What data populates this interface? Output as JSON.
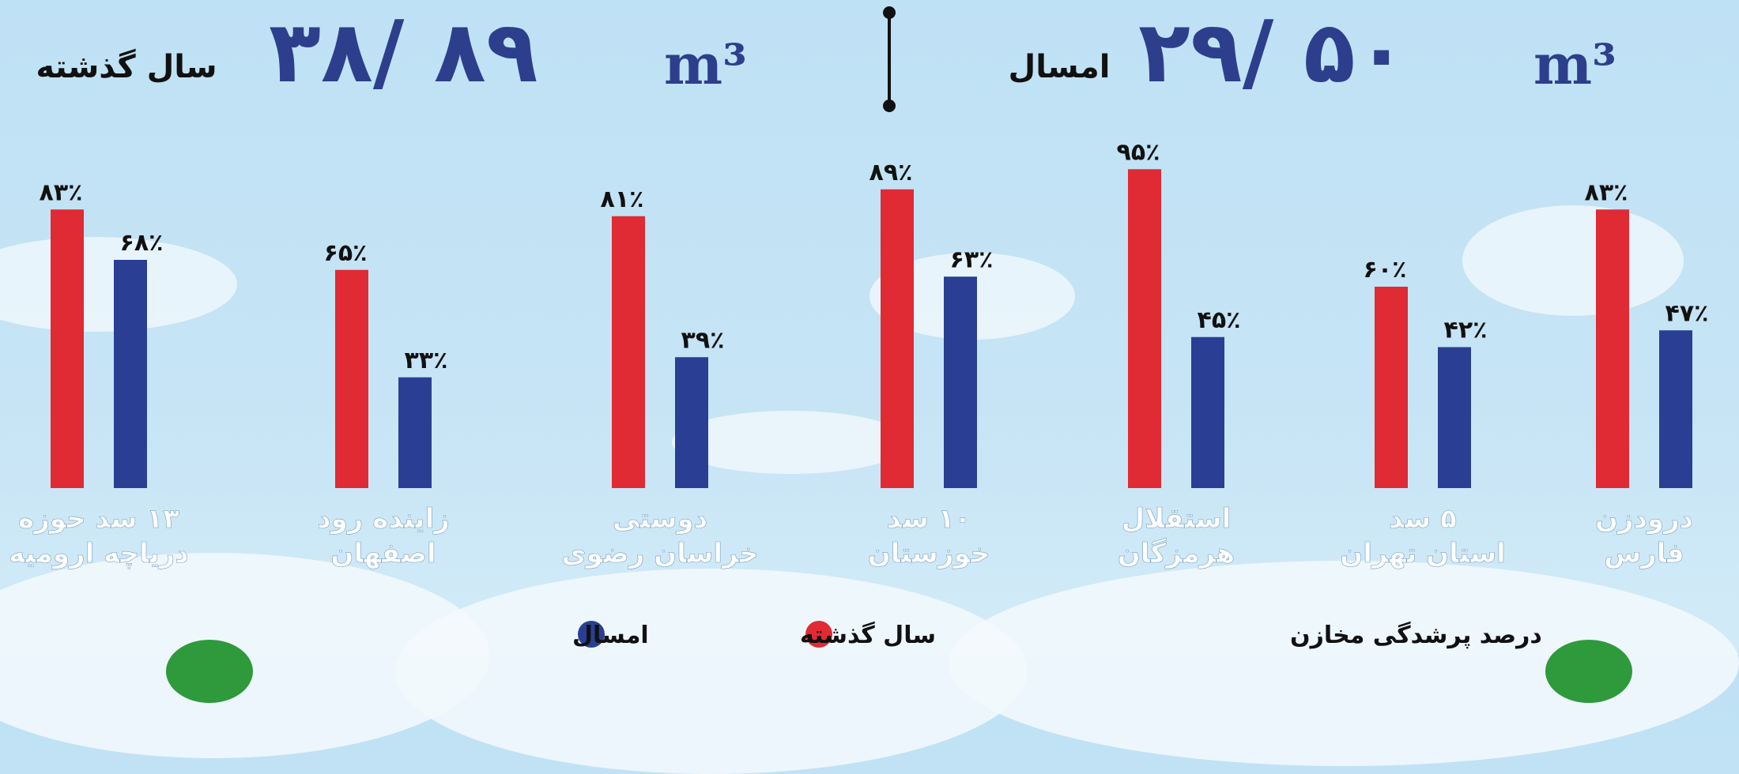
{
  "header": {
    "last_year_label": "سال گذشته",
    "last_year_value": "۳۸/ ۸۹",
    "this_year_label": "امسال",
    "this_year_value": "۲۹/ ۵۰",
    "unit": "m³"
  },
  "colors": {
    "last_year": "#e02a34",
    "this_year": "#2a3f93",
    "title_text": "#2d3f8c",
    "label_text": "#ffffff"
  },
  "chart_data": {
    "type": "bar",
    "categories": [
      [
        "۱۳ سد حوزه",
        "دریاچه ارومیه"
      ],
      [
        "زاینده رود",
        "اصفهان"
      ],
      [
        "دوستی",
        "خراسان رضوی"
      ],
      [
        "۱۰ سد",
        "خوزستان"
      ],
      [
        "استقلال",
        "هرمزگان"
      ],
      [
        "۵ سد",
        "استان تهران"
      ],
      [
        "درودزن",
        "فارس"
      ]
    ],
    "series": [
      {
        "name": "سال گذشته",
        "values": [
          83,
          65,
          81,
          89,
          95,
          60,
          83
        ],
        "labels": [
          "۸۳٪",
          "۶۵٪",
          "۸۱٪",
          "۸۹٪",
          "۹۵٪",
          "۶۰٪",
          "۸۳٪"
        ]
      },
      {
        "name": "امسال",
        "values": [
          68,
          33,
          39,
          63,
          45,
          42,
          47
        ],
        "labels": [
          "۶۸٪",
          "۳۳٪",
          "۳۹٪",
          "۶۳٪",
          "۴۵٪",
          "۴۲٪",
          "۴۷٪"
        ]
      }
    ],
    "legend_title": "درصد پرشدگی مخازن",
    "legend_position": "bottom-center",
    "ylim": [
      0,
      100
    ]
  }
}
